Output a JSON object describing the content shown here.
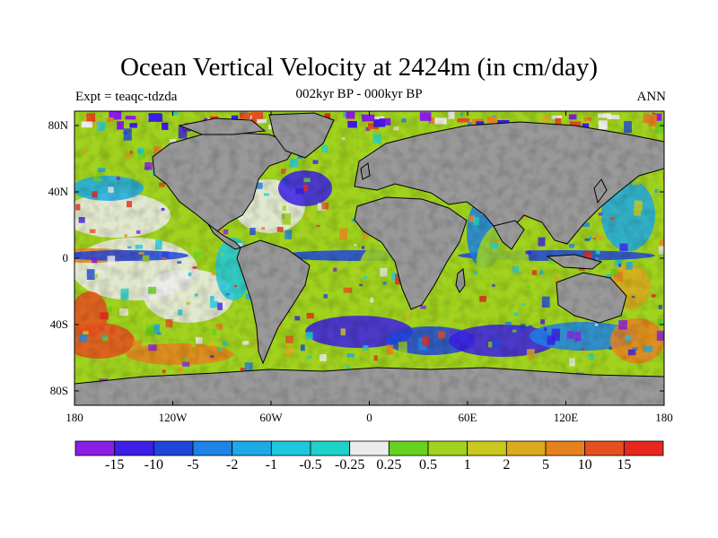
{
  "title": "Ocean Vertical Velocity at 2424m (in cm/day)",
  "subtitle": "002kyr BP - 000kyr BP",
  "left_label": "Expt = teaqc-tdzda",
  "right_label": "ANN",
  "lat_ticks": [
    "80N",
    "40N",
    "0",
    "40S",
    "80S"
  ],
  "lon_ticks": [
    "180",
    "120W",
    "60W",
    "0",
    "60E",
    "120E",
    "180"
  ],
  "colorbar": {
    "labels": [
      "-15",
      "-10",
      "-5",
      "-2",
      "-1",
      "-0.5",
      "-0.25",
      "0.25",
      "0.5",
      "1",
      "2",
      "5",
      "10",
      "15"
    ],
    "colors": [
      "#8a1ee6",
      "#3c1ee6",
      "#1e46dc",
      "#1e82e6",
      "#1eaae6",
      "#1ec8dc",
      "#1ed2c8",
      "#ececec",
      "#64d21e",
      "#a0d21e",
      "#c8c81e",
      "#dcaa1e",
      "#e6821e",
      "#e6501e",
      "#e6281e"
    ]
  },
  "colors": {
    "land": "#999999",
    "coast": "#000000"
  }
}
